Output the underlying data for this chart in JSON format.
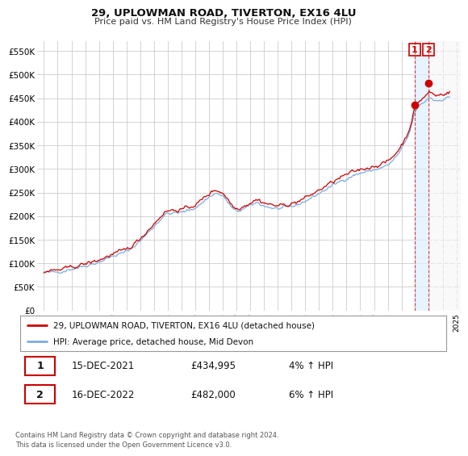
{
  "title": "29, UPLOWMAN ROAD, TIVERTON, EX16 4LU",
  "subtitle": "Price paid vs. HM Land Registry's House Price Index (HPI)",
  "ylabel_ticks": [
    "£0",
    "£50K",
    "£100K",
    "£150K",
    "£200K",
    "£250K",
    "£300K",
    "£350K",
    "£400K",
    "£450K",
    "£500K",
    "£550K"
  ],
  "ytick_values": [
    0,
    50000,
    100000,
    150000,
    200000,
    250000,
    300000,
    350000,
    400000,
    450000,
    500000,
    550000
  ],
  "ylim": [
    0,
    570000
  ],
  "line1_color": "#cc0000",
  "line2_color": "#7aacde",
  "legend_line1": "29, UPLOWMAN ROAD, TIVERTON, EX16 4LU (detached house)",
  "legend_line2": "HPI: Average price, detached house, Mid Devon",
  "annotation1_date": "15-DEC-2021",
  "annotation1_price": "£434,995",
  "annotation1_hpi": "4% ↑ HPI",
  "annotation2_date": "16-DEC-2022",
  "annotation2_price": "£482,000",
  "annotation2_hpi": "6% ↑ HPI",
  "footnote": "Contains HM Land Registry data © Crown copyright and database right 2024.\nThis data is licensed under the Open Government Licence v3.0.",
  "bg_color": "#ffffff",
  "grid_color": "#cccccc",
  "purchase_x1": 2021.958,
  "purchase_y1": 434995,
  "purchase_x2": 2022.958,
  "purchase_y2": 482000,
  "xlim_left": 1994.5,
  "xlim_right": 2025.3
}
